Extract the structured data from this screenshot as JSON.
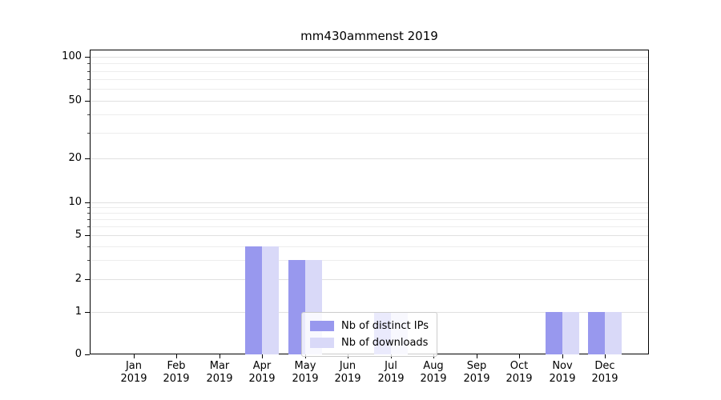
{
  "chart_data": {
    "type": "bar",
    "title": "mm430ammenst 2019",
    "categories": [
      "Jan 2019",
      "Feb 2019",
      "Mar 2019",
      "Apr 2019",
      "May 2019",
      "Jun 2019",
      "Jul 2019",
      "Aug 2019",
      "Sep 2019",
      "Oct 2019",
      "Nov 2019",
      "Dec 2019"
    ],
    "series": [
      {
        "name": "Nb of distinct IPs",
        "color": "#9898ee",
        "values": [
          0,
          0,
          0,
          4,
          3,
          0,
          1,
          0,
          0,
          0,
          1,
          1
        ]
      },
      {
        "name": "Nb of downloads",
        "color": "#d9d9f8",
        "values": [
          0,
          0,
          0,
          4,
          3,
          0,
          1,
          0,
          0,
          0,
          1,
          1
        ]
      }
    ],
    "yticks": [
      0,
      1,
      2,
      5,
      10,
      20,
      50,
      100
    ],
    "yscale": "symlog",
    "ylim": [
      0,
      150
    ],
    "grid": true,
    "legend_position": "lower center",
    "xlabel": "",
    "ylabel": ""
  }
}
